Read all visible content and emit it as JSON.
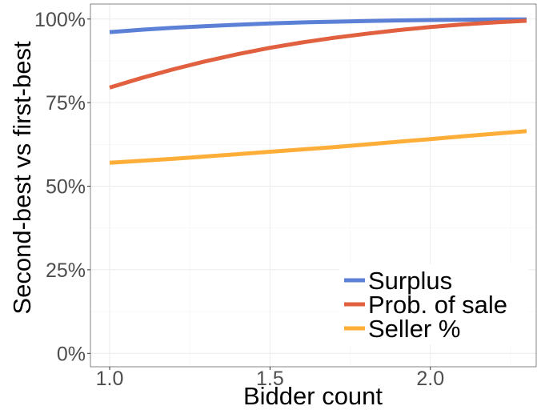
{
  "chart_data": {
    "type": "line",
    "title": "",
    "xlabel": "Bidder count",
    "ylabel": "Second-best vs first-best",
    "xlim": [
      0.94,
      2.33
    ],
    "ylim": [
      -0.04,
      1.045
    ],
    "x_ticks": [
      1.0,
      1.5,
      2.0
    ],
    "x_tick_labels": [
      "1.0",
      "1.5",
      "2.0"
    ],
    "y_ticks": [
      0,
      0.25,
      0.5,
      0.75,
      1.0
    ],
    "y_tick_labels": [
      "0%",
      "25%",
      "50%",
      "75%",
      "100%"
    ],
    "grid": true,
    "legend_position": "bottom-right",
    "x": [
      1.0,
      1.1,
      1.2,
      1.3,
      1.4,
      1.5,
      1.6,
      1.7,
      1.8,
      1.9,
      2.0,
      2.1,
      2.2,
      2.3
    ],
    "series": [
      {
        "name": "Surplus",
        "color": "#5b80d6",
        "values": [
          0.961,
          0.968,
          0.974,
          0.979,
          0.983,
          0.987,
          0.99,
          0.992,
          0.994,
          0.996,
          0.997,
          0.998,
          0.999,
          0.999
        ]
      },
      {
        "name": "Prob. of sale",
        "color": "#e0603f",
        "values": [
          0.795,
          0.824,
          0.85,
          0.874,
          0.895,
          0.914,
          0.93,
          0.944,
          0.956,
          0.967,
          0.976,
          0.984,
          0.99,
          0.995
        ]
      },
      {
        "name": "Seller %",
        "color": "#fdae38",
        "values": [
          0.57,
          0.576,
          0.582,
          0.589,
          0.596,
          0.603,
          0.61,
          0.617,
          0.625,
          0.633,
          0.641,
          0.649,
          0.657,
          0.665
        ]
      }
    ]
  }
}
